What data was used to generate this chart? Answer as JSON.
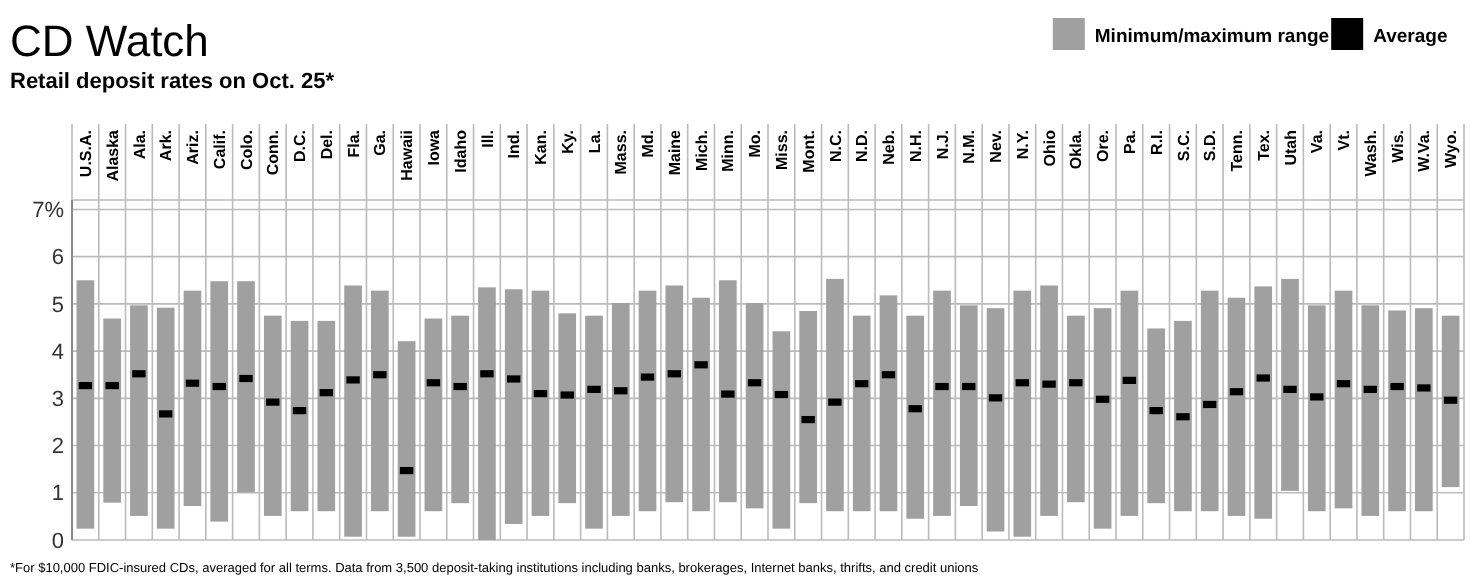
{
  "chart_data": {
    "type": "bar",
    "title": "CD Watch",
    "subtitle": "Retail deposit rates on Oct. 25*",
    "annotations": [
      "*For $10,000 FDIC-insured CDs, averaged for all terms. Data from 3,500 deposit-taking institutions including banks, brokerages, Internet banks, thrifts, and credit unions"
    ],
    "categories": [
      "U.S.A.",
      "Alaska",
      "Ala.",
      "Ark.",
      "Ariz.",
      "Calif.",
      "Colo.",
      "Conn.",
      "D.C.",
      "Del.",
      "Fla.",
      "Ga.",
      "Hawaii",
      "Iowa",
      "Idaho",
      "Ill.",
      "Ind.",
      "Kan.",
      "Ky.",
      "La.",
      "Mass.",
      "Md.",
      "Maine",
      "Mich.",
      "Minn.",
      "Mo.",
      "Miss.",
      "Mont.",
      "N.C.",
      "N.D.",
      "Neb.",
      "N.H.",
      "N.J.",
      "N.M.",
      "Nev.",
      "N.Y.",
      "Ohio",
      "Okla.",
      "Ore.",
      "Pa.",
      "R.I.",
      "S.C.",
      "S.D.",
      "Tenn.",
      "Tex.",
      "Utah",
      "Va.",
      "Vt.",
      "Wash.",
      "Wis.",
      "W.Va.",
      "Wyo."
    ],
    "series": [
      {
        "name": "Minimum/maximum range",
        "type": "bar",
        "color": "#a0a0a0",
        "base": [
          0.24,
          0.79,
          0.51,
          0.24,
          0.72,
          0.39,
          1.01,
          0.51,
          0.61,
          0.61,
          0.07,
          0.61,
          0.07,
          0.61,
          0.78,
          0,
          0.34,
          0.51,
          0.78,
          0.24,
          0.51,
          0.61,
          0.8,
          0.61,
          0.8,
          0.67,
          0.24,
          0.78,
          0.61,
          0.61,
          0.61,
          0.45,
          0.51,
          0.72,
          0.18,
          0.07,
          0.51,
          0.8,
          0.24,
          0.51,
          0.78,
          0.61,
          0.61,
          0.51,
          0.45,
          1.04,
          0.61,
          0.67,
          0.51,
          0.61,
          0.61,
          1.12
        ],
        "values": [
          5.26,
          3.9,
          4.46,
          4.68,
          4.56,
          5.09,
          4.47,
          4.24,
          4.03,
          4.03,
          5.32,
          4.67,
          4.14,
          4.08,
          3.97,
          5.35,
          4.97,
          4.77,
          4.02,
          4.51,
          4.51,
          4.67,
          4.59,
          4.52,
          4.7,
          4.35,
          4.18,
          4.07,
          4.92,
          4.14,
          4.57,
          4.3,
          4.77,
          4.25,
          4.73,
          5.21,
          4.88,
          3.95,
          4.67,
          4.77,
          3.7,
          4.03,
          4.67,
          4.62,
          4.92,
          4.49,
          4.36,
          4.61,
          4.46,
          4.25,
          4.3,
          3.63
        ]
      },
      {
        "name": "Average",
        "type": "scatter",
        "color": "#000000",
        "marker": "square",
        "x": [
          "U.S.A.",
          "Alaska",
          "Ala.",
          "Ark.",
          "Ariz.",
          "Calif.",
          "Colo.",
          "Conn.",
          "D.C.",
          "Del.",
          "Fla.",
          "Ga.",
          "Hawaii",
          "Iowa",
          "Idaho",
          "Ill.",
          "Ind.",
          "Kan.",
          "Ky.",
          "La.",
          "Mass.",
          "Md.",
          "Maine",
          "Mich.",
          "Minn.",
          "Mo.",
          "Miss.",
          "Mont.",
          "N.C.",
          "N.D.",
          "Neb.",
          "N.H.",
          "N.J.",
          "N.M.",
          "Nev.",
          "N.Y.",
          "Ohio",
          "Okla.",
          "Ore.",
          "Pa.",
          "R.I.",
          "S.C.",
          "S.D.",
          "Tenn.",
          "Tex.",
          "Utah",
          "Va.",
          "Vt.",
          "Wash.",
          "Wis.",
          "W.Va.",
          "Wyo."
        ],
        "values": [
          3.27,
          3.27,
          3.52,
          2.67,
          3.32,
          3.25,
          3.42,
          2.92,
          2.74,
          3.12,
          3.39,
          3.5,
          1.47,
          3.33,
          3.25,
          3.52,
          3.41,
          3.1,
          3.07,
          3.19,
          3.16,
          3.45,
          3.52,
          3.71,
          3.09,
          3.33,
          3.08,
          2.55,
          2.92,
          3.31,
          3.5,
          2.78,
          3.25,
          3.25,
          3.01,
          3.33,
          3.3,
          3.33,
          2.98,
          3.38,
          2.74,
          2.61,
          2.87,
          3.14,
          3.43,
          3.19,
          3.03,
          3.31,
          3.19,
          3.25,
          3.22,
          2.96
        ]
      }
    ],
    "ylim": [
      0,
      7.2
    ],
    "yticks": [
      0,
      1,
      2,
      3,
      4,
      5,
      6,
      {
        "value": 7,
        "label": "7%"
      }
    ],
    "grid": true,
    "legend": "top right"
  }
}
